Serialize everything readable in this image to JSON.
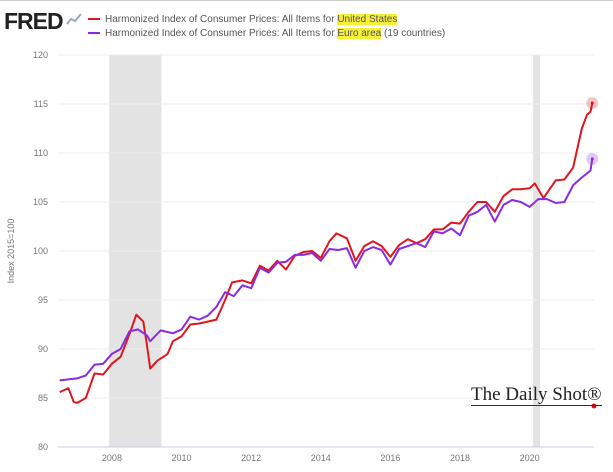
{
  "logo": "FRED",
  "watermark": "The Daily Shot®",
  "chart_data": {
    "type": "line",
    "title": "",
    "ylabel": "Index 2015=100",
    "xlabel": "",
    "ylim": [
      80,
      120
    ],
    "xlim": [
      2006.45,
      2021.85
    ],
    "yticks": [
      "80",
      "85",
      "90",
      "95",
      "100",
      "105",
      "110",
      "115",
      "120"
    ],
    "xticks": [
      "2008",
      "2010",
      "2012",
      "2014",
      "2016",
      "2018",
      "2020"
    ],
    "recessions": [
      [
        2007.92,
        2009.42
      ],
      [
        2020.1,
        2020.3
      ]
    ],
    "legend": [
      {
        "prefix": "Harmonized Index of Consumer Prices: All Items for ",
        "highlight": "United States",
        "suffix": ""
      },
      {
        "prefix": "Harmonized Index of Consumer Prices: All Items for ",
        "highlight": "Euro area",
        "suffix": " (19 countries)"
      }
    ],
    "series": [
      {
        "name": "Harmonized Index of Consumer Prices: All Items for United States",
        "color": "#e0161e",
        "x": [
          2006.5,
          2006.75,
          2006.9,
          2007.0,
          2007.25,
          2007.5,
          2007.75,
          2008.0,
          2008.25,
          2008.5,
          2008.7,
          2008.9,
          2009.0,
          2009.1,
          2009.3,
          2009.6,
          2009.75,
          2010.0,
          2010.25,
          2010.5,
          2010.75,
          2011.0,
          2011.25,
          2011.45,
          2011.75,
          2012.0,
          2012.25,
          2012.5,
          2012.75,
          2013.0,
          2013.25,
          2013.5,
          2013.75,
          2014.0,
          2014.25,
          2014.45,
          2014.75,
          2015.0,
          2015.25,
          2015.5,
          2015.75,
          2016.0,
          2016.25,
          2016.5,
          2016.75,
          2017.0,
          2017.25,
          2017.5,
          2017.75,
          2018.0,
          2018.25,
          2018.5,
          2018.75,
          2019.0,
          2019.25,
          2019.5,
          2019.75,
          2020.0,
          2020.15,
          2020.4,
          2020.75,
          2021.0,
          2021.25,
          2021.5,
          2021.65,
          2021.75,
          2021.8
        ],
        "y": [
          85.6,
          86.0,
          84.6,
          84.5,
          85.0,
          87.5,
          87.4,
          88.5,
          89.2,
          91.5,
          93.5,
          92.8,
          90.5,
          88.0,
          88.8,
          89.5,
          90.8,
          91.3,
          92.5,
          92.6,
          92.8,
          93.0,
          95.0,
          96.8,
          97.0,
          96.7,
          98.5,
          98.0,
          99.0,
          98.1,
          99.5,
          99.9,
          100.0,
          99.3,
          101.0,
          101.8,
          101.3,
          99.0,
          100.5,
          101.0,
          100.5,
          99.4,
          100.6,
          101.2,
          100.8,
          101.2,
          102.2,
          102.2,
          102.9,
          102.8,
          104.0,
          105.0,
          105.0,
          104.0,
          105.6,
          106.3,
          106.3,
          106.4,
          106.9,
          105.4,
          107.2,
          107.3,
          108.5,
          112.5,
          113.9,
          114.2,
          115.1
        ]
      },
      {
        "name": "Harmonized Index of Consumer Prices: All Items for Euro area (19 countries)",
        "color": "#8a2be2",
        "x": [
          2006.5,
          2006.75,
          2007.0,
          2007.25,
          2007.5,
          2007.75,
          2008.0,
          2008.25,
          2008.5,
          2008.75,
          2009.0,
          2009.1,
          2009.4,
          2009.75,
          2010.0,
          2010.25,
          2010.5,
          2010.75,
          2011.0,
          2011.25,
          2011.5,
          2011.75,
          2012.0,
          2012.25,
          2012.5,
          2012.75,
          2013.0,
          2013.25,
          2013.5,
          2013.75,
          2014.0,
          2014.25,
          2014.5,
          2014.75,
          2015.0,
          2015.25,
          2015.5,
          2015.75,
          2016.0,
          2016.25,
          2016.5,
          2016.75,
          2017.0,
          2017.25,
          2017.5,
          2017.75,
          2018.0,
          2018.25,
          2018.5,
          2018.75,
          2019.0,
          2019.25,
          2019.5,
          2019.75,
          2020.0,
          2020.25,
          2020.5,
          2020.75,
          2021.0,
          2021.25,
          2021.5,
          2021.75,
          2021.8
        ],
        "y": [
          86.8,
          86.9,
          87.0,
          87.3,
          88.4,
          88.5,
          89.5,
          90.0,
          91.8,
          92.0,
          91.4,
          90.8,
          91.9,
          91.6,
          92.0,
          93.3,
          93.0,
          93.4,
          94.3,
          95.8,
          95.4,
          96.5,
          96.2,
          98.3,
          97.8,
          98.8,
          98.9,
          99.6,
          99.6,
          99.8,
          99.0,
          100.2,
          100.1,
          100.3,
          98.3,
          100.0,
          100.4,
          100.1,
          98.6,
          100.2,
          100.5,
          100.8,
          100.4,
          102.0,
          101.8,
          102.3,
          101.6,
          103.6,
          104.0,
          104.7,
          103.0,
          104.7,
          105.2,
          105.0,
          104.5,
          105.3,
          105.3,
          104.9,
          105.0,
          106.7,
          107.5,
          108.2,
          109.4
        ]
      }
    ]
  }
}
